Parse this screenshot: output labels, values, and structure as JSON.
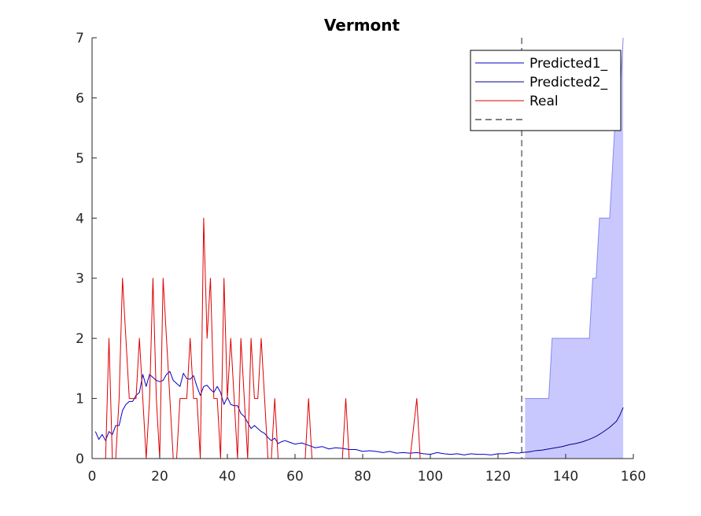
{
  "chart_data": {
    "type": "line",
    "title": "Vermont",
    "xlabel": "",
    "ylabel": "",
    "xlim": [
      0,
      160
    ],
    "ylim": [
      0,
      7
    ],
    "xticks": [
      0,
      20,
      40,
      60,
      80,
      100,
      120,
      140,
      160
    ],
    "yticks": [
      0,
      1,
      2,
      3,
      4,
      5,
      6,
      7
    ],
    "grid": false,
    "legend_position": "top-right",
    "legend": [
      "Predicted1_",
      "Predicted2_",
      "Real",
      ""
    ],
    "vline_x": 127,
    "series": [
      {
        "name": "Predicted1_",
        "color": "#0000cc",
        "x": [
          1,
          2,
          3,
          4,
          5,
          6,
          7,
          8,
          9,
          10,
          11,
          12,
          13,
          14,
          15,
          16,
          17,
          18,
          19,
          20,
          21,
          22,
          23,
          24,
          25,
          26,
          27,
          28,
          29,
          30,
          31,
          32,
          33,
          34,
          35,
          36,
          37,
          38,
          39,
          40,
          41,
          42,
          43,
          44,
          45,
          46,
          47,
          48,
          49,
          50,
          51,
          52,
          53,
          54,
          55,
          56,
          57,
          58,
          59,
          60,
          62,
          64,
          66,
          68,
          70,
          72,
          74,
          76,
          78,
          80,
          82,
          84,
          86,
          88,
          90,
          92,
          94,
          96,
          98,
          100,
          102,
          104,
          106,
          108,
          110,
          112,
          114,
          116,
          118,
          120,
          122,
          124,
          126,
          127
        ],
        "y": [
          0.45,
          0.32,
          0.4,
          0.3,
          0.45,
          0.4,
          0.55,
          0.55,
          0.8,
          0.9,
          0.95,
          0.95,
          1.05,
          1.1,
          1.4,
          1.2,
          1.4,
          1.35,
          1.3,
          1.28,
          1.3,
          1.4,
          1.45,
          1.3,
          1.25,
          1.2,
          1.42,
          1.33,
          1.32,
          1.38,
          1.2,
          1.05,
          1.2,
          1.22,
          1.15,
          1.1,
          1.2,
          1.1,
          0.9,
          1.02,
          0.9,
          0.88,
          0.88,
          0.75,
          0.7,
          0.6,
          0.5,
          0.55,
          0.5,
          0.45,
          0.42,
          0.35,
          0.3,
          0.34,
          0.25,
          0.28,
          0.3,
          0.28,
          0.26,
          0.24,
          0.26,
          0.22,
          0.18,
          0.2,
          0.16,
          0.18,
          0.17,
          0.15,
          0.15,
          0.12,
          0.13,
          0.12,
          0.1,
          0.12,
          0.09,
          0.1,
          0.09,
          0.1,
          0.08,
          0.07,
          0.1,
          0.08,
          0.07,
          0.08,
          0.06,
          0.08,
          0.07,
          0.07,
          0.06,
          0.08,
          0.08,
          0.1,
          0.09,
          0.1
        ]
      },
      {
        "name": "Predicted2_",
        "color": "#00008b",
        "x": [
          127,
          129,
          131,
          133,
          135,
          137,
          139,
          141,
          143,
          145,
          147,
          149,
          151,
          153,
          155,
          156,
          157
        ],
        "y": [
          0.1,
          0.11,
          0.13,
          0.14,
          0.16,
          0.18,
          0.2,
          0.23,
          0.25,
          0.28,
          0.32,
          0.37,
          0.44,
          0.52,
          0.62,
          0.72,
          0.85
        ]
      },
      {
        "name": "Real",
        "color": "#dd0000",
        "x": [
          1,
          2,
          3,
          4,
          5,
          6,
          7,
          8,
          9,
          10,
          11,
          12,
          13,
          14,
          15,
          16,
          17,
          18,
          19,
          20,
          21,
          22,
          23,
          24,
          25,
          26,
          27,
          28,
          29,
          30,
          31,
          32,
          33,
          34,
          35,
          36,
          37,
          38,
          39,
          40,
          41,
          42,
          43,
          44,
          45,
          46,
          47,
          48,
          49,
          50,
          51,
          52,
          53,
          54,
          55,
          56,
          57,
          58,
          59,
          60,
          61,
          62,
          63,
          64,
          65,
          66,
          67,
          68,
          69,
          70,
          71,
          72,
          73,
          74,
          75,
          76,
          77,
          78,
          79,
          80,
          82,
          84,
          86,
          88,
          90,
          92,
          94,
          96,
          97,
          98,
          100,
          102,
          104,
          106,
          108,
          110,
          112,
          114,
          116,
          118,
          120,
          122,
          124,
          126,
          127
        ],
        "y": [
          0,
          0,
          0,
          0,
          2,
          0,
          0,
          1,
          3,
          2,
          1,
          1,
          1,
          2,
          1,
          0,
          1,
          3,
          1,
          0,
          3,
          2,
          1,
          0,
          0,
          1,
          1,
          1,
          2,
          1,
          1,
          0,
          4,
          2,
          3,
          1,
          1,
          0,
          3,
          1,
          2,
          1,
          0,
          2,
          1,
          0,
          2,
          1,
          1,
          2,
          1,
          0,
          0,
          1,
          0,
          0,
          0,
          0,
          0,
          0,
          0,
          0,
          0,
          1,
          0,
          0,
          0,
          0,
          0,
          0,
          0,
          0,
          0,
          0,
          1,
          0,
          0,
          0,
          0,
          0,
          0,
          0,
          0,
          0,
          0,
          0,
          0,
          1,
          0,
          0,
          0,
          0,
          0,
          0,
          0,
          0,
          0,
          0,
          0,
          0,
          0,
          0,
          0,
          0,
          0
        ]
      }
    ],
    "band": {
      "color": "#c8c8ff",
      "edge_color": "#8888ee",
      "x": [
        128,
        129,
        130,
        131,
        132,
        133,
        134,
        135,
        136,
        137,
        138,
        139,
        140,
        141,
        142,
        143,
        144,
        145,
        146,
        147,
        148,
        149,
        150,
        151,
        152,
        153,
        154,
        155,
        156,
        157
      ],
      "upper": [
        1,
        1,
        1,
        1,
        1,
        1,
        1,
        1,
        2,
        2,
        2,
        2,
        2,
        2,
        2,
        2,
        2,
        2,
        2,
        2,
        3,
        3,
        4,
        4,
        4,
        4,
        5,
        6,
        6,
        7
      ],
      "lower": [
        0,
        0,
        0,
        0,
        0,
        0,
        0,
        0,
        0,
        0,
        0,
        0,
        0,
        0,
        0,
        0,
        0,
        0,
        0,
        0,
        0,
        0,
        0,
        0,
        0,
        0,
        0,
        0,
        0,
        0
      ]
    }
  }
}
